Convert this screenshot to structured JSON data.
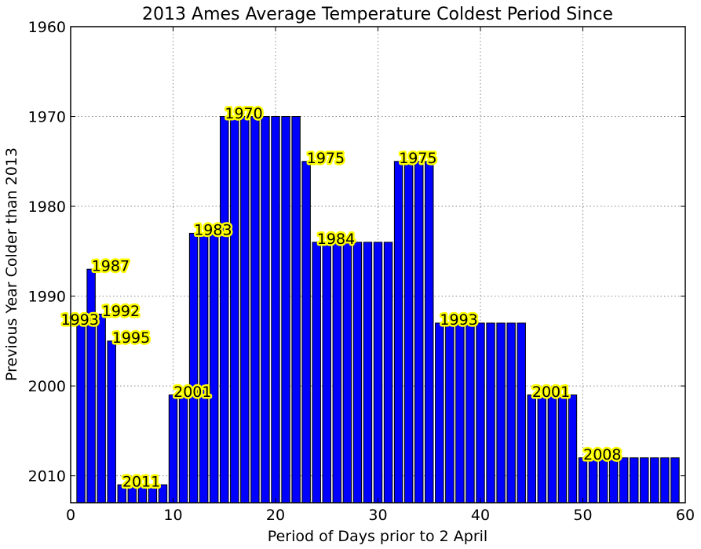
{
  "chart_data": {
    "type": "bar",
    "title": "2013 Ames Average Temperature Coldest Period Since",
    "xlabel": "Period of Days prior to 2 April",
    "ylabel": "Previous Year Colder than 2013",
    "xlim": [
      0,
      60
    ],
    "ylim": [
      2013,
      1960
    ],
    "y_inverted": true,
    "grid": true,
    "bar_color": "#0000ff",
    "annotation_highlight": "#ffff00",
    "xticks": [
      0,
      10,
      20,
      30,
      40,
      50,
      60
    ],
    "yticks": [
      1960,
      1970,
      1980,
      1990,
      2000,
      2010
    ],
    "x": [
      1,
      2,
      3,
      4,
      5,
      6,
      7,
      8,
      9,
      10,
      11,
      12,
      13,
      14,
      15,
      16,
      17,
      18,
      19,
      20,
      21,
      22,
      23,
      24,
      25,
      26,
      27,
      28,
      29,
      30,
      31,
      32,
      33,
      34,
      35,
      36,
      37,
      38,
      39,
      40,
      41,
      42,
      43,
      44,
      45,
      46,
      47,
      48,
      49,
      50,
      51,
      52,
      53,
      54,
      55,
      56,
      57,
      58,
      59
    ],
    "values": [
      1993,
      1987,
      1992,
      1995,
      2011,
      2011,
      2011,
      2011,
      2011,
      2001,
      2001,
      1983,
      1983,
      1983,
      1970,
      1970,
      1970,
      1970,
      1970,
      1970,
      1970,
      1970,
      1975,
      1984,
      1984,
      1984,
      1984,
      1984,
      1984,
      1984,
      1984,
      1975,
      1975,
      1975,
      1975,
      1993,
      1993,
      1993,
      1993,
      1993,
      1993,
      1993,
      1993,
      1993,
      2001,
      2001,
      2001,
      2001,
      2001,
      2008,
      2008,
      2008,
      2008,
      2008,
      2008,
      2008,
      2008,
      2008,
      2008
    ],
    "annotations": [
      {
        "text": "1993",
        "x": 0.9,
        "y": 1993.2
      },
      {
        "text": "1987",
        "x": 3.9,
        "y": 1987.2
      },
      {
        "text": "1992",
        "x": 4.9,
        "y": 1992.2
      },
      {
        "text": "1995",
        "x": 5.9,
        "y": 1995.2
      },
      {
        "text": "2011",
        "x": 6.9,
        "y": 2011.2
      },
      {
        "text": "2001",
        "x": 11.9,
        "y": 2001.2
      },
      {
        "text": "1983",
        "x": 13.9,
        "y": 1983.2
      },
      {
        "text": "1970",
        "x": 16.9,
        "y": 1970.2
      },
      {
        "text": "1975",
        "x": 24.9,
        "y": 1975.2
      },
      {
        "text": "1984",
        "x": 25.9,
        "y": 1984.2
      },
      {
        "text": "1975",
        "x": 33.9,
        "y": 1975.2
      },
      {
        "text": "1993",
        "x": 37.9,
        "y": 1993.2
      },
      {
        "text": "2001",
        "x": 46.9,
        "y": 2001.2
      },
      {
        "text": "2008",
        "x": 51.9,
        "y": 2008.2
      }
    ]
  }
}
